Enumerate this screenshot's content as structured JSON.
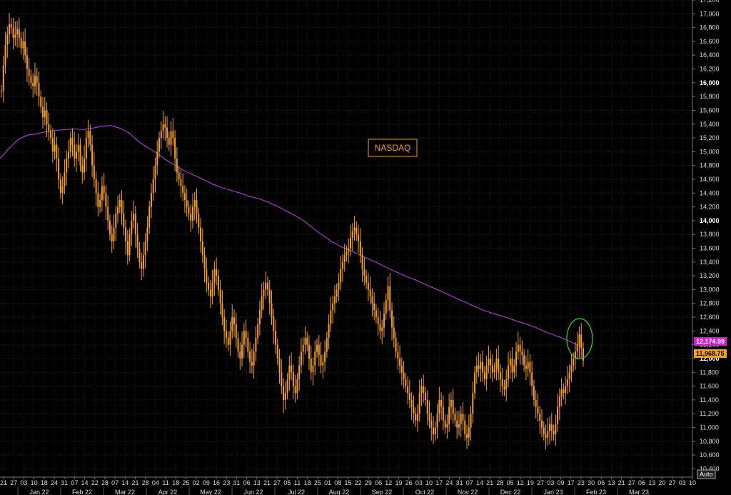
{
  "chart_data": {
    "type": "line",
    "annotation_label": "NASDAQ",
    "y_ticks": [
      10400,
      10600,
      10800,
      11000,
      11200,
      11400,
      11600,
      11800,
      12000,
      12200,
      12400,
      12600,
      12800,
      13000,
      13200,
      13400,
      13600,
      13800,
      14000,
      14200,
      14400,
      14600,
      14800,
      15000,
      15200,
      15400,
      15600,
      15800,
      16000,
      16200,
      16400,
      16600,
      16800,
      17000,
      17200
    ],
    "y_major_ticks": [
      12000,
      14000,
      16000
    ],
    "ylim": [
      10280,
      17200
    ],
    "day_ticks": [
      "21",
      "27",
      "03",
      "10",
      "18",
      "24",
      "31",
      "07",
      "14",
      "22",
      "28",
      "07",
      "14",
      "21",
      "28",
      "04",
      "11",
      "18",
      "25",
      "02",
      "09",
      "16",
      "23",
      "31",
      "06",
      "13",
      "21",
      "27",
      "05",
      "11",
      "18",
      "25",
      "01",
      "08",
      "15",
      "22",
      "29",
      "06",
      "12",
      "19",
      "26",
      "03",
      "10",
      "17",
      "24",
      "31",
      "07",
      "14",
      "21",
      "28",
      "05",
      "12",
      "19",
      "27",
      "03",
      "09",
      "17",
      "23",
      "30",
      "06",
      "13",
      "21",
      "27",
      "06",
      "13",
      "20",
      "27",
      "03",
      "10"
    ],
    "month_labels": [
      "Jan 22",
      "Feb 22",
      "Mar 22",
      "Apr 22",
      "May 22",
      "Jun 22",
      "Jul 22",
      "Aug 22",
      "Sep 22",
      "Oct 22",
      "Nov 22",
      "Dec 22",
      "Jan 23",
      "Feb 23",
      "Mar 23"
    ],
    "auto_button": "Auto",
    "series": [
      {
        "name": "NASDAQ",
        "color": "#f5a020",
        "last_value_label": "11,968.75",
        "values": [
          15880,
          16250,
          16550,
          16700,
          16850,
          16800,
          16650,
          16700,
          16780,
          16650,
          16500,
          16600,
          16400,
          16200,
          16100,
          16000,
          15950,
          16100,
          16000,
          15800,
          15650,
          15500,
          15600,
          15400,
          15300,
          15200,
          15000,
          15100,
          14900,
          14600,
          14400,
          14500,
          14700,
          14900,
          15000,
          15200,
          15100,
          14900,
          15000,
          15100,
          14800,
          14700,
          14900,
          15200,
          15300,
          15100,
          14800,
          14600,
          14400,
          14200,
          14300,
          14500,
          14400,
          14200,
          14000,
          13800,
          13700,
          13900,
          14100,
          14200,
          14300,
          14100,
          13900,
          13700,
          13500,
          13800,
          14000,
          14100,
          13800,
          13600,
          13400,
          13300,
          13500,
          13700,
          13900,
          14200,
          14400,
          14600,
          14800,
          15000,
          15200,
          15300,
          15400,
          15350,
          15200,
          15100,
          15300,
          15200,
          14900,
          14700,
          14600,
          14500,
          14400,
          14300,
          14200,
          14100,
          14000,
          14200,
          14300,
          14100,
          13900,
          13700,
          13500,
          13300,
          13100,
          13000,
          12900,
          13100,
          13300,
          13200,
          13000,
          12800,
          12600,
          12400,
          12300,
          12200,
          12400,
          12600,
          12500,
          12300,
          12100,
          12000,
          12200,
          12400,
          12300,
          12100,
          11950,
          11900,
          12100,
          12300,
          12500,
          12700,
          12900,
          13000,
          13100,
          13000,
          12800,
          12600,
          12400,
          12200,
          12000,
          11800,
          11600,
          11400,
          11500,
          11700,
          11900,
          11800,
          11600,
          11500,
          11700,
          11900,
          12100,
          12200,
          12300,
          12200,
          12000,
          11800,
          11900,
          12100,
          12200,
          12050,
          11900,
          11950,
          12100,
          12300,
          12500,
          12700,
          12800,
          12900,
          13000,
          13100,
          13300,
          13400,
          13500,
          13550,
          13600,
          13750,
          13850,
          13900,
          13800,
          13700,
          13500,
          13300,
          13200,
          13100,
          13000,
          12900,
          12800,
          12700,
          12600,
          12500,
          12400,
          12450,
          12650,
          12850,
          13050,
          12700,
          12450,
          12300,
          12100,
          12000,
          11900,
          11800,
          11700,
          11600,
          11500,
          11400,
          11300,
          11200,
          11100,
          11200,
          11500,
          11600,
          11500,
          11400,
          11200,
          11100,
          11000,
          10900,
          11000,
          11200,
          11400,
          11300,
          11100,
          11000,
          11050,
          11300,
          11400,
          11200,
          11100,
          11000,
          11050,
          11200,
          11100,
          10900,
          10850,
          11000,
          11200,
          11500,
          11800,
          11900,
          11850,
          11950,
          11800,
          11700,
          11900,
          12000,
          11900,
          11800,
          11850,
          12000,
          11800,
          11700,
          11600,
          11550,
          11700,
          11900,
          12000,
          11800,
          11900,
          12100,
          12200,
          12100,
          12050,
          11900,
          11850,
          11950,
          11800,
          11600,
          11400,
          11300,
          11200,
          11100,
          11000,
          10900,
          10850,
          10950,
          11050,
          10950,
          10900,
          11050,
          11300,
          11450,
          11550,
          11500,
          11600,
          11700,
          11800,
          11900,
          12000,
          12100,
          12200,
          12350,
          12150,
          11968.75
        ]
      },
      {
        "name": "moving average",
        "color": "#b23fd6",
        "last_value_label": "12,174.99",
        "values": [
          14900,
          15050,
          15180,
          15240,
          15260,
          15290,
          15310,
          15320,
          15330,
          15320,
          15340,
          15370,
          15380,
          15340,
          15270,
          15150,
          15060,
          14980,
          14880,
          14800,
          14720,
          14660,
          14600,
          14530,
          14480,
          14440,
          14400,
          14350,
          14320,
          14270,
          14210,
          14140,
          14070,
          13990,
          13880,
          13780,
          13690,
          13620,
          13560,
          13500,
          13440,
          13380,
          13310,
          13250,
          13190,
          13140,
          13080,
          13020,
          12960,
          12900,
          12840,
          12780,
          12720,
          12670,
          12630,
          12590,
          12540,
          12500,
          12450,
          12390,
          12340,
          12290,
          12230,
          12174.99
        ]
      }
    ]
  }
}
